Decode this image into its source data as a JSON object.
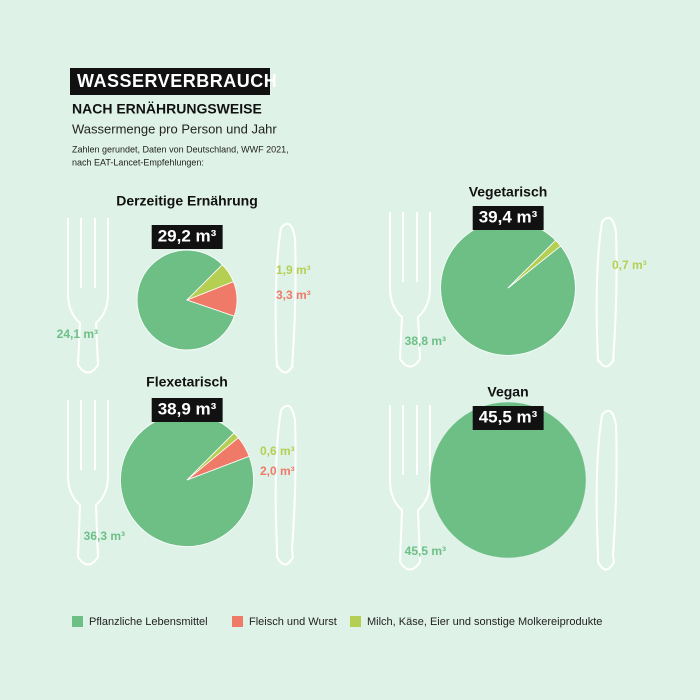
{
  "header": {
    "title": "WASSERVERBRAUCH",
    "subtitle": "NACH ERNÄHRUNGSWEISE",
    "description": "Wassermenge pro Person und Jahr",
    "note": [
      "Zahlen gerundet, Daten von Deutschland, WWF 2021,",
      "nach EAT-Lancet-Empfehlungen:"
    ]
  },
  "legend": [
    {
      "name": "Pflanzliche Lebensmittel",
      "color": "#6dbf86"
    },
    {
      "name": "Fleisch und Wurst",
      "color": "#f07a68"
    },
    {
      "name": "Milch, Käse, Eier und sonstige Molkereiprodukte",
      "color": "#b5cf53"
    }
  ],
  "chart_data": [
    {
      "type": "pie",
      "title": "Derzeitige Ernährung",
      "total": 29.2,
      "total_label": "29,2 m³",
      "values": [
        24.1,
        3.3,
        1.9
      ],
      "value_labels": [
        "24,1 m³",
        "3,3 m³",
        "1,9 m³"
      ],
      "colors": [
        "#6dbf86",
        "#f07a68",
        "#b5cf53"
      ]
    },
    {
      "type": "pie",
      "title": "Vegetarisch",
      "total": 39.4,
      "total_label": "39,4 m³",
      "values": [
        38.8,
        0.7
      ],
      "value_labels": [
        "38,8 m³",
        "0,7 m³"
      ],
      "colors": [
        "#6dbf86",
        "#b5cf53"
      ]
    },
    {
      "type": "pie",
      "title": "Flexetarisch",
      "total": 38.9,
      "total_label": "38,9 m³",
      "values": [
        36.3,
        2.0,
        0.6
      ],
      "value_labels": [
        "36,3 m³",
        "2,0 m³",
        "0,6 m³"
      ],
      "colors": [
        "#6dbf86",
        "#f07a68",
        "#b5cf53"
      ]
    },
    {
      "type": "pie",
      "title": "Vegan",
      "total": 45.5,
      "total_label": "45,5 m³",
      "values": [
        45.5
      ],
      "value_labels": [
        "45,5 m³"
      ],
      "colors": [
        "#6dbf86"
      ]
    }
  ]
}
